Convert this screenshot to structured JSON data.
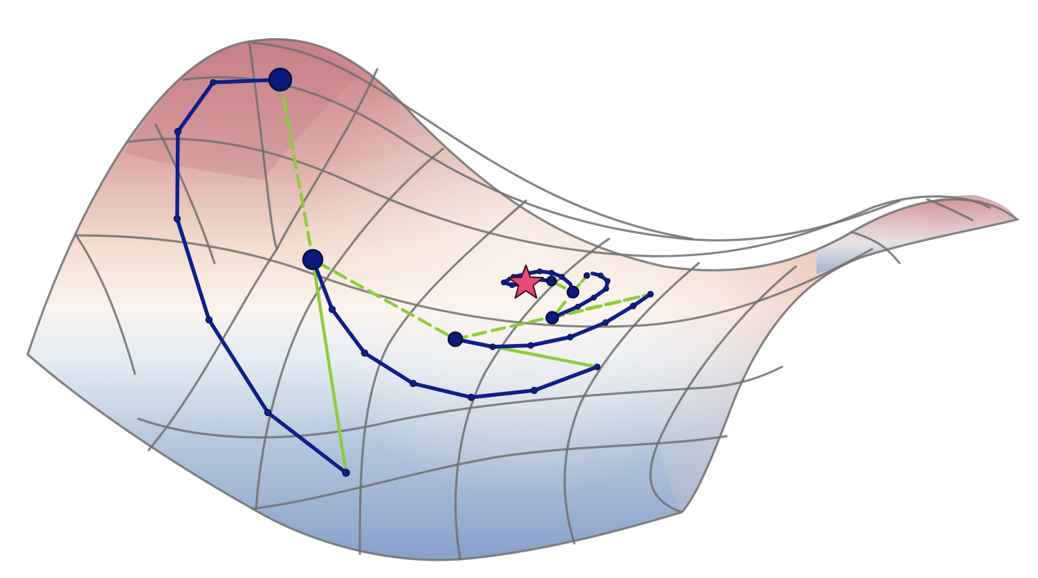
{
  "diagram": {
    "kind": "3d-saddle-surface-with-optimization-paths",
    "surface_colormap": {
      "high": "#c8868c",
      "mid": "#fbf3ee",
      "low": "#7f9cc8"
    },
    "grid_color": "#6f6f6f",
    "paths": [
      {
        "name": "blue-trajectory",
        "color": "#0f1f8a",
        "style": "solid"
      },
      {
        "name": "green-trajectory",
        "color": "#8ccc3c",
        "style": "dashed"
      }
    ],
    "optimum_marker": {
      "shape": "star-icon",
      "color": "#e64a78"
    }
  }
}
